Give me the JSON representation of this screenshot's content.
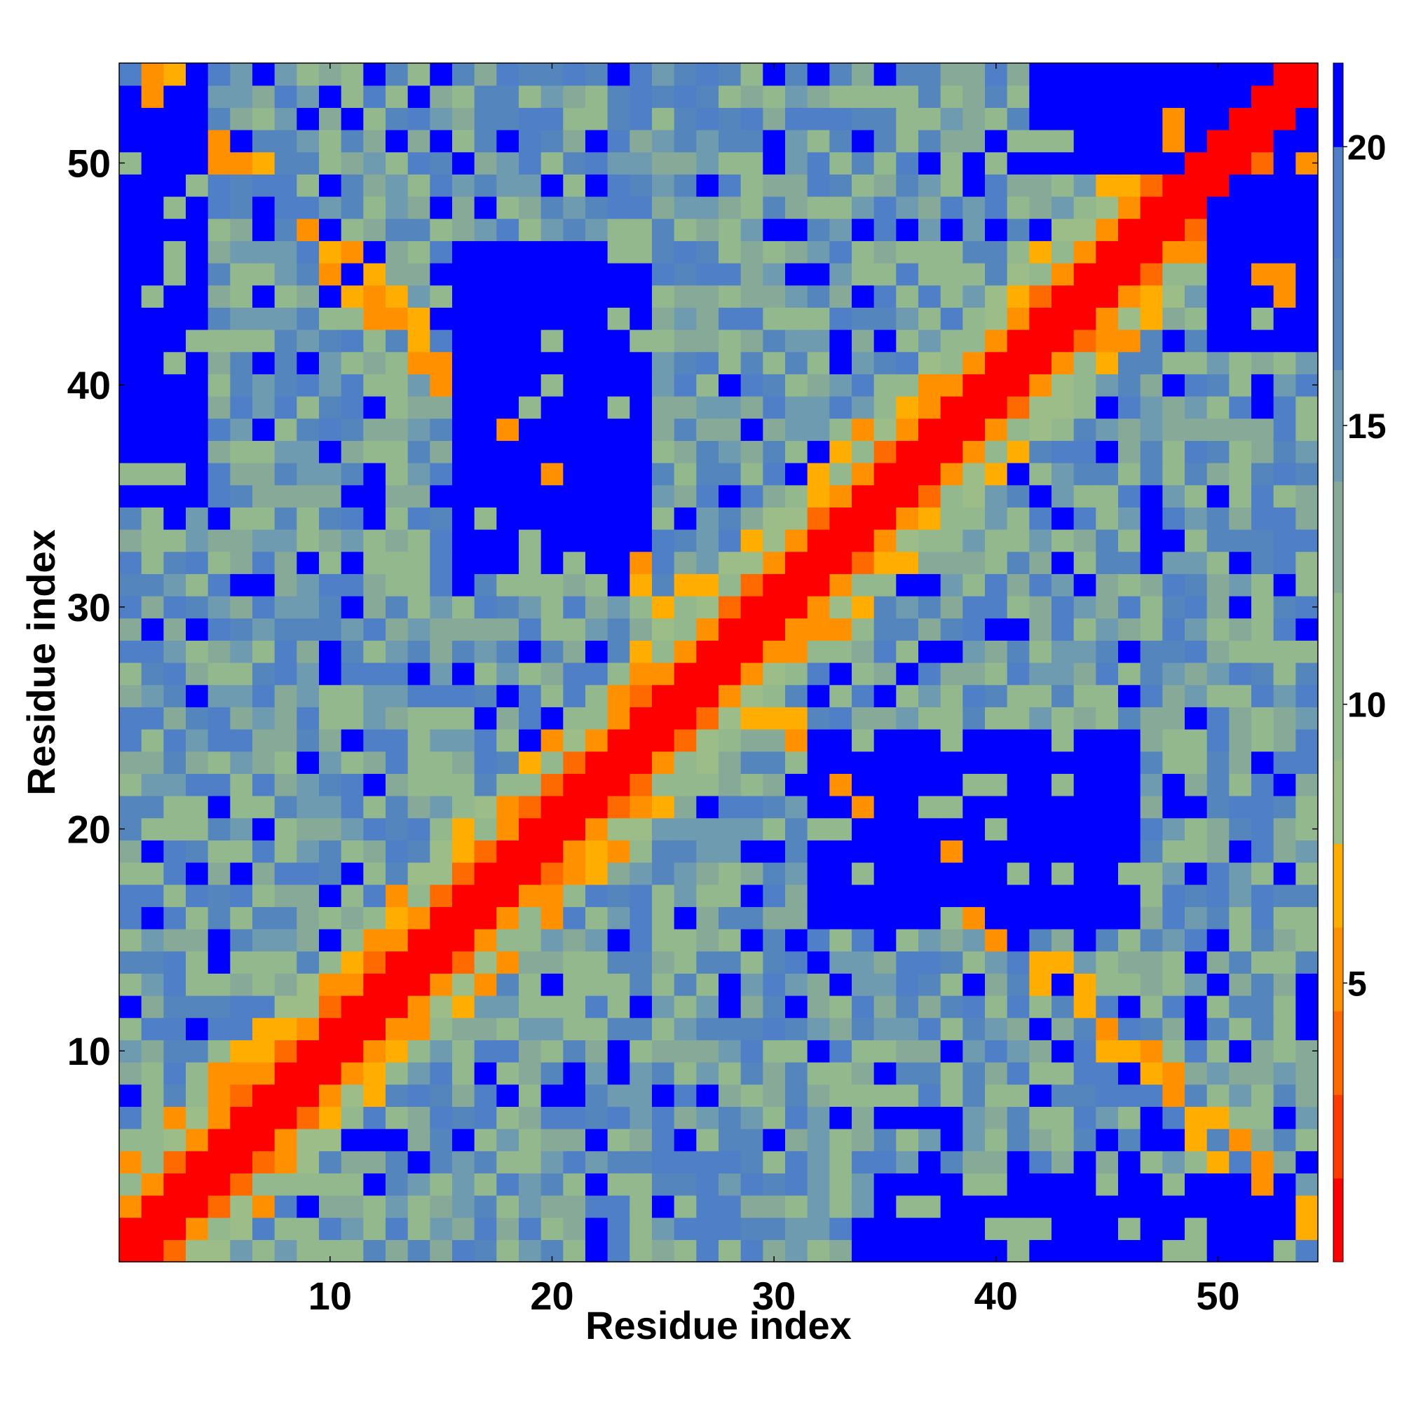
{
  "chart_data": {
    "type": "heatmap",
    "title": "",
    "xlabel": "Residue index",
    "ylabel": "Residue index",
    "n": 54,
    "x_ticks": [
      "10",
      "20",
      "30",
      "40",
      "50"
    ],
    "y_ticks": [
      "10",
      "20",
      "30",
      "40",
      "50"
    ],
    "colorbar": {
      "ticks": [
        "5",
        "10",
        "15",
        "20"
      ],
      "range": [
        0,
        21.5
      ],
      "bands": [
        {
          "max": 1.5,
          "color": "#ff0000"
        },
        {
          "max": 3.0,
          "color": "#ff3c00"
        },
        {
          "max": 4.5,
          "color": "#ff6a00"
        },
        {
          "max": 6.0,
          "color": "#ff9100"
        },
        {
          "max": 7.5,
          "color": "#ffad00"
        },
        {
          "max": 9.0,
          "color": "#9cbc88"
        },
        {
          "max": 12.0,
          "color": "#94b88e"
        },
        {
          "max": 14.0,
          "color": "#87aa98"
        },
        {
          "max": 16.0,
          "color": "#6e9bb0"
        },
        {
          "max": 18.0,
          "color": "#5585bd"
        },
        {
          "max": 20.0,
          "color": "#4f7fc6"
        },
        {
          "max": 99.0,
          "color": "#0000ff"
        }
      ]
    },
    "grid": false,
    "legend": "colorbar right",
    "structure": {
      "diagonal_distance": 0.5,
      "domain_cores": [
        {
          "i": [
            16,
            24
          ],
          "j": [
            32,
            46
          ],
          "value": 22
        },
        {
          "i": [
            32,
            46
          ],
          "j": [
            16,
            24
          ],
          "value": 22
        },
        {
          "i": [
            1,
            4
          ],
          "j": [
            35,
            53
          ],
          "value": 22
        },
        {
          "i": [
            35,
            53
          ],
          "j": [
            1,
            4
          ],
          "value": 22
        },
        {
          "i": [
            42,
            54
          ],
          "j": [
            50,
            54
          ],
          "value": 22
        },
        {
          "i": [
            50,
            54
          ],
          "j": [
            42,
            54
          ],
          "value": 22
        }
      ]
    }
  }
}
